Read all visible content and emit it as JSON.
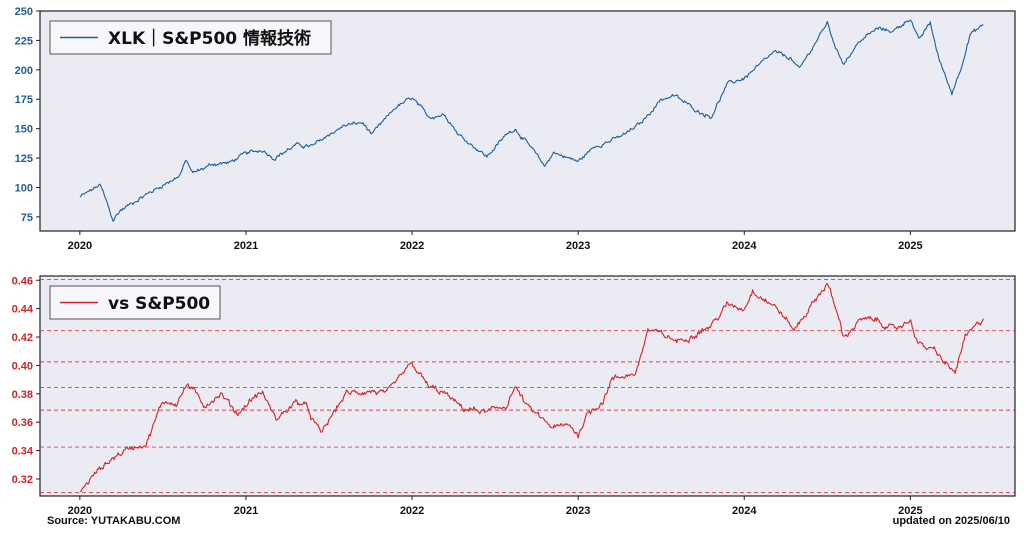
{
  "chart_data": [
    {
      "type": "line",
      "legend": {
        "label": "XLK｜S&P500 情報技術",
        "position": "top-left"
      },
      "series": [
        {
          "name": "XLK｜S&P500 情報技術",
          "color": "#1f5f95"
        }
      ],
      "x_ticks": [
        "2020",
        "2021",
        "2022",
        "2023",
        "2024",
        "2025"
      ],
      "y_ticks": [
        "75",
        "100",
        "125",
        "150",
        "175",
        "200",
        "225",
        "250"
      ],
      "xlim": [
        2019.76,
        2025.63
      ],
      "ylim": [
        63,
        250
      ],
      "grid": false,
      "anchors": [
        [
          2020.0,
          92
        ],
        [
          2020.05,
          96
        ],
        [
          2020.12,
          102
        ],
        [
          2020.14,
          96
        ],
        [
          2020.2,
          72
        ],
        [
          2020.24,
          80
        ],
        [
          2020.35,
          90
        ],
        [
          2020.5,
          102
        ],
        [
          2020.6,
          110
        ],
        [
          2020.64,
          123
        ],
        [
          2020.68,
          112
        ],
        [
          2020.8,
          120
        ],
        [
          2020.9,
          121
        ],
        [
          2021.0,
          129
        ],
        [
          2021.1,
          132
        ],
        [
          2021.17,
          125
        ],
        [
          2021.3,
          136
        ],
        [
          2021.4,
          135
        ],
        [
          2021.5,
          145
        ],
        [
          2021.6,
          153
        ],
        [
          2021.7,
          155
        ],
        [
          2021.76,
          145
        ],
        [
          2021.9,
          168
        ],
        [
          2022.0,
          176
        ],
        [
          2022.1,
          160
        ],
        [
          2022.2,
          162
        ],
        [
          2022.28,
          145
        ],
        [
          2022.4,
          132
        ],
        [
          2022.45,
          126
        ],
        [
          2022.58,
          147
        ],
        [
          2022.62,
          150
        ],
        [
          2022.72,
          133
        ],
        [
          2022.8,
          118
        ],
        [
          2022.85,
          130
        ],
        [
          2023.0,
          122
        ],
        [
          2023.1,
          135
        ],
        [
          2023.2,
          140
        ],
        [
          2023.28,
          145
        ],
        [
          2023.38,
          155
        ],
        [
          2023.5,
          175
        ],
        [
          2023.58,
          178
        ],
        [
          2023.72,
          165
        ],
        [
          2023.8,
          160
        ],
        [
          2023.9,
          188
        ],
        [
          2024.0,
          193
        ],
        [
          2024.1,
          205
        ],
        [
          2024.18,
          215
        ],
        [
          2024.28,
          210
        ],
        [
          2024.33,
          200
        ],
        [
          2024.5,
          240
        ],
        [
          2024.56,
          215
        ],
        [
          2024.6,
          206
        ],
        [
          2024.7,
          225
        ],
        [
          2024.8,
          235
        ],
        [
          2024.9,
          233
        ],
        [
          2025.0,
          244
        ],
        [
          2025.05,
          225
        ],
        [
          2025.12,
          240
        ],
        [
          2025.17,
          210
        ],
        [
          2025.25,
          180
        ],
        [
          2025.3,
          200
        ],
        [
          2025.36,
          230
        ],
        [
          2025.44,
          238
        ]
      ]
    },
    {
      "type": "line",
      "legend": {
        "label": "vs S&P500",
        "position": "top-left"
      },
      "series": [
        {
          "name": "vs S&P500",
          "color": "#d42426"
        }
      ],
      "x_ticks": [
        "2020",
        "2021",
        "2022",
        "2023",
        "2024",
        "2025"
      ],
      "y_ticks": [
        "0.32",
        "0.34",
        "0.36",
        "0.38",
        "0.40",
        "0.42",
        "0.44",
        "0.46"
      ],
      "xlim": [
        2019.76,
        2025.63
      ],
      "ylim": [
        0.308,
        0.463
      ],
      "hlines": [
        0.3105,
        0.3425,
        0.3685,
        0.3845,
        0.4025,
        0.4245,
        0.4605
      ],
      "anchors": [
        [
          2020.0,
          0.311
        ],
        [
          2020.1,
          0.325
        ],
        [
          2020.2,
          0.335
        ],
        [
          2020.3,
          0.342
        ],
        [
          2020.4,
          0.345
        ],
        [
          2020.5,
          0.375
        ],
        [
          2020.58,
          0.373
        ],
        [
          2020.65,
          0.387
        ],
        [
          2020.75,
          0.372
        ],
        [
          2020.85,
          0.38
        ],
        [
          2020.95,
          0.366
        ],
        [
          2021.05,
          0.378
        ],
        [
          2021.1,
          0.381
        ],
        [
          2021.18,
          0.362
        ],
        [
          2021.3,
          0.374
        ],
        [
          2021.35,
          0.373
        ],
        [
          2021.45,
          0.352
        ],
        [
          2021.6,
          0.38
        ],
        [
          2021.75,
          0.382
        ],
        [
          2021.85,
          0.38
        ],
        [
          2021.95,
          0.395
        ],
        [
          2022.0,
          0.401
        ],
        [
          2022.1,
          0.385
        ],
        [
          2022.2,
          0.38
        ],
        [
          2022.3,
          0.37
        ],
        [
          2022.45,
          0.367
        ],
        [
          2022.57,
          0.372
        ],
        [
          2022.62,
          0.385
        ],
        [
          2022.7,
          0.37
        ],
        [
          2022.85,
          0.356
        ],
        [
          2022.95,
          0.358
        ],
        [
          2023.0,
          0.351
        ],
        [
          2023.05,
          0.365
        ],
        [
          2023.15,
          0.375
        ],
        [
          2023.2,
          0.39
        ],
        [
          2023.35,
          0.395
        ],
        [
          2023.42,
          0.425
        ],
        [
          2023.5,
          0.422
        ],
        [
          2023.6,
          0.417
        ],
        [
          2023.7,
          0.422
        ],
        [
          2023.8,
          0.428
        ],
        [
          2023.9,
          0.443
        ],
        [
          2024.0,
          0.44
        ],
        [
          2024.05,
          0.453
        ],
        [
          2024.2,
          0.44
        ],
        [
          2024.3,
          0.425
        ],
        [
          2024.45,
          0.45
        ],
        [
          2024.5,
          0.458
        ],
        [
          2024.55,
          0.44
        ],
        [
          2024.6,
          0.42
        ],
        [
          2024.7,
          0.432
        ],
        [
          2024.8,
          0.432
        ],
        [
          2024.9,
          0.425
        ],
        [
          2025.0,
          0.432
        ],
        [
          2025.05,
          0.415
        ],
        [
          2025.15,
          0.41
        ],
        [
          2025.22,
          0.4
        ],
        [
          2025.27,
          0.395
        ],
        [
          2025.33,
          0.42
        ],
        [
          2025.4,
          0.428
        ],
        [
          2025.44,
          0.433
        ]
      ]
    }
  ],
  "footer": {
    "source": "Source: YUTAKABU.COM",
    "updated": "updated on 2025/06/10"
  }
}
